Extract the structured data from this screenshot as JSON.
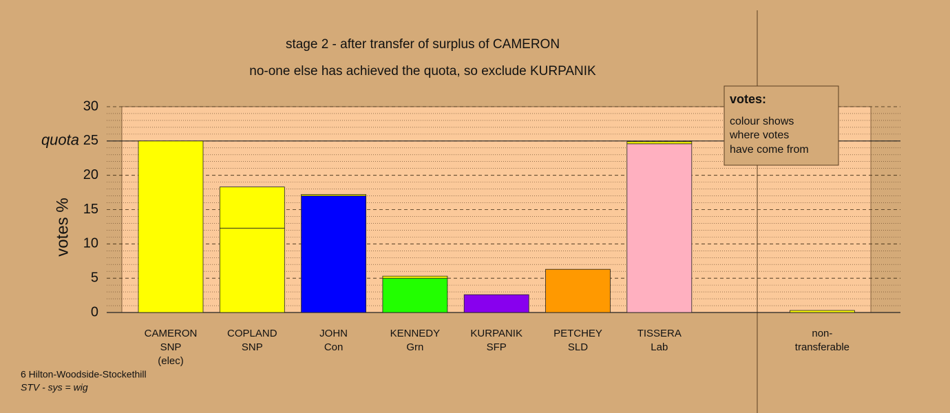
{
  "chart_data": {
    "type": "stacked_bar",
    "title": "stage 2 - after transfer of surplus of CAMERON",
    "subtitle": "no-one else has achieved the quota, so exclude KURPANIK",
    "y_label": "votes %",
    "categories": [
      [
        "CAMERON",
        "SNP",
        "(elec)"
      ],
      [
        "COPLAND",
        "SNP"
      ],
      [
        "JOHN",
        "Con"
      ],
      [
        "KENNEDY",
        "Grn"
      ],
      [
        "KURPANIK",
        "SFP"
      ],
      [
        "PETCHEY",
        "SLD"
      ],
      [
        "TISSERA",
        "Lab"
      ],
      [
        "non-",
        "transferable"
      ]
    ],
    "series": [
      {
        "colors": [
          "#ffff00",
          "#ffff00",
          "#0000ff",
          "#22ff00",
          "#8800ee",
          "#ff9900",
          "#ffb0c0",
          "#ffff00"
        ],
        "values": [
          25,
          12.3,
          17.0,
          5.0,
          2.6,
          6.3,
          24.6,
          null
        ]
      },
      {
        "color": "#ffff00",
        "values": [
          null,
          6.0,
          0.2,
          0.3,
          null,
          null,
          0.3,
          0.3
        ]
      }
    ],
    "quota": 25,
    "quota_label": "quota",
    "ylim": [
      0,
      30
    ],
    "yticks": [
      0,
      5,
      10,
      15,
      20,
      25,
      30
    ],
    "minor_yticks": [
      1,
      2,
      3,
      4,
      6,
      7,
      8,
      9,
      11,
      12,
      13,
      14,
      16,
      17,
      18,
      19,
      21,
      22,
      23,
      24,
      26,
      27,
      28,
      29
    ],
    "grid": true,
    "note": {
      "heading": "votes:",
      "lines": [
        "colour shows",
        "where votes",
        "have come from"
      ]
    },
    "footer": [
      "6 Hilton-Woodside-Stockethill",
      "STV - sys = wig"
    ]
  }
}
